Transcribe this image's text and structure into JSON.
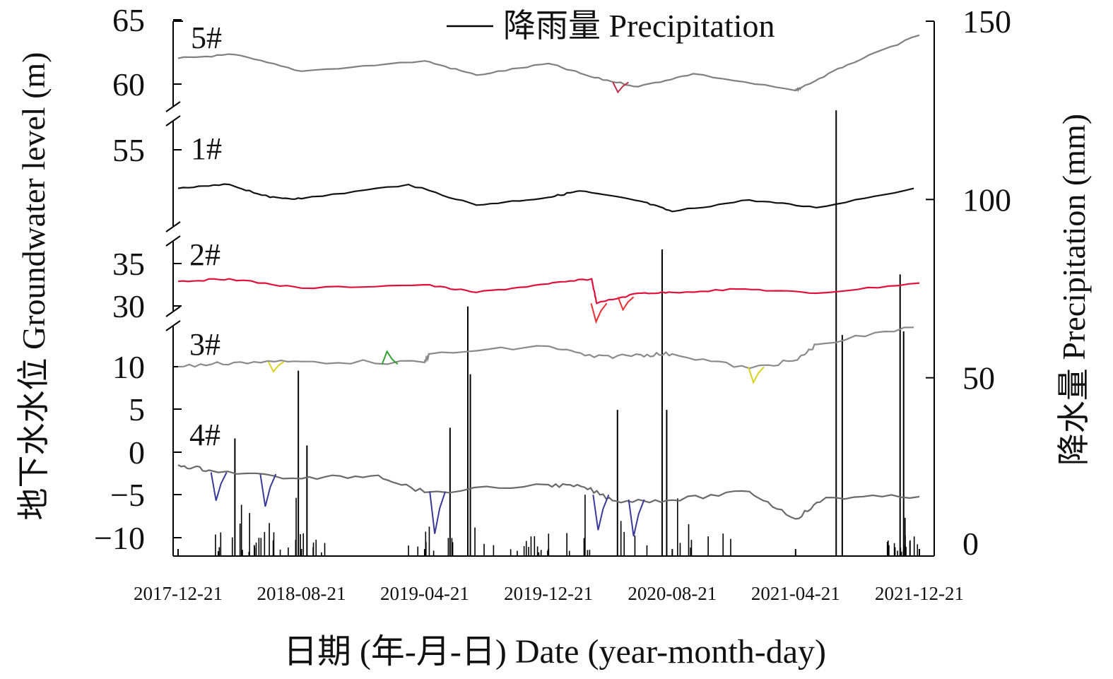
{
  "chart_data": {
    "type": "line",
    "legend": {
      "label": "降雨量  Precipitation",
      "placement": "top-center",
      "color": "#000000"
    },
    "ylabel_left": "地下水水位 Groundwater level (m)",
    "ylabel_right": "降水量 Precipitation (mm)",
    "xlabel": "日期 (年-月-日) Date (year-month-day)",
    "x_ticks": [
      "2017-12-21",
      "2018-08-21",
      "2019-04-21",
      "2019-12-21",
      "2020-08-21",
      "2021-04-21",
      "2021-12-21"
    ],
    "y_left_broken": true,
    "y_left_segments": [
      {
        "range": [
          59.5,
          65
        ],
        "ticks": [
          "65",
          "60"
        ]
      },
      {
        "range": [
          49,
          55.5
        ],
        "ticks": [
          "55"
        ]
      },
      {
        "range": [
          29,
          36
        ],
        "ticks": [
          "35",
          "30"
        ]
      },
      {
        "range": [
          -12,
          13
        ],
        "ticks": [
          "10",
          "5",
          "0",
          "−5",
          "−10"
        ]
      }
    ],
    "y_right_range": [
      0,
      150
    ],
    "y_right_ticks": [
      "150",
      "100",
      "50",
      "0"
    ],
    "colors": {
      "well_5": "#808080",
      "well_5_flag": "#c0304a",
      "well_1": "#111111",
      "well_2": "#e0103a",
      "well_2_flag": "#e83030",
      "well_3": "#8a8a8a",
      "well_3_flag_yellow": "#d8d020",
      "well_3_flag_green": "#30a030",
      "well_4": "#6a6a6a",
      "well_4_flag": "#3a3a9a",
      "precipitation": "#000000"
    },
    "series": [
      {
        "name": "5#",
        "x": [
          "2017-12-21",
          "2018-04-10",
          "2018-08-21",
          "2019-04-21",
          "2019-08-01",
          "2019-12-21",
          "2020-03-20",
          "2020-06-15",
          "2020-10-01",
          "2021-04-21",
          "2021-05-01",
          "2021-08-01",
          "2021-12-21"
        ],
        "y": [
          62.0,
          62.3,
          61.0,
          61.8,
          60.7,
          61.6,
          60.5,
          59.8,
          60.8,
          59.5,
          59.7,
          61.5,
          63.8
        ]
      },
      {
        "name": "1#",
        "x": [
          "2017-12-21",
          "2018-04-01",
          "2018-06-20",
          "2018-08-21",
          "2019-03-20",
          "2019-08-01",
          "2019-12-21",
          "2020-02-20",
          "2020-06-20",
          "2020-08-21",
          "2021-01-20",
          "2021-06-01",
          "2021-12-10"
        ],
        "y": [
          52.0,
          52.3,
          51.3,
          51.2,
          52.3,
          50.7,
          51.3,
          51.8,
          51.0,
          50.2,
          51.1,
          50.5,
          52.0
        ]
      },
      {
        "name": "2#",
        "x": [
          "2017-12-21",
          "2018-04-01",
          "2018-08-21",
          "2019-04-21",
          "2019-08-01",
          "2019-12-21",
          "2020-03-15",
          "2020-03-25",
          "2020-06-15",
          "2020-08-21",
          "2021-01-10",
          "2021-06-01",
          "2021-12-21"
        ],
        "y": [
          32.9,
          33.2,
          32.1,
          32.5,
          31.6,
          32.6,
          33.2,
          30.3,
          31.5,
          31.6,
          32.0,
          31.5,
          32.7
        ]
      },
      {
        "name": "3#",
        "x": [
          "2017-12-21",
          "2018-04-10",
          "2018-08-21",
          "2019-04-21",
          "2019-05-01",
          "2019-12-21",
          "2020-03-20",
          "2020-06-20",
          "2020-08-21",
          "2021-01-20",
          "2021-04-25",
          "2021-06-01",
          "2021-12-10"
        ],
        "y": [
          10.0,
          10.5,
          10.6,
          10.5,
          11.5,
          12.4,
          11.1,
          11.4,
          11.5,
          9.8,
          10.8,
          12.6,
          14.6
        ]
      },
      {
        "name": "4#",
        "x": [
          "2017-12-21",
          "2018-02-20",
          "2018-08-21",
          "2019-01-20",
          "2019-04-21",
          "2019-12-21",
          "2020-03-01",
          "2020-05-01",
          "2020-08-21",
          "2021-01-20",
          "2021-04-21",
          "2021-06-20",
          "2021-12-21"
        ],
        "y": [
          -1.5,
          -2.1,
          -3.1,
          -2.7,
          -4.7,
          -3.8,
          -4.1,
          -5.7,
          -5.6,
          -4.6,
          -7.8,
          -5.3,
          -5.2
        ]
      },
      {
        "name": "降雨量  Precipitation",
        "x": [
          "2018-04-12",
          "2018-08-15",
          "2018-09-01",
          "2019-06-10",
          "2019-07-15",
          "2019-07-20",
          "2020-05-05",
          "2020-08-01",
          "2020-08-10",
          "2021-07-10",
          "2021-07-22",
          "2021-11-13",
          "2021-11-20"
        ],
        "y": [
          33,
          52,
          31,
          36,
          70,
          51,
          41,
          86,
          41,
          125,
          62,
          79,
          63
        ]
      }
    ]
  }
}
